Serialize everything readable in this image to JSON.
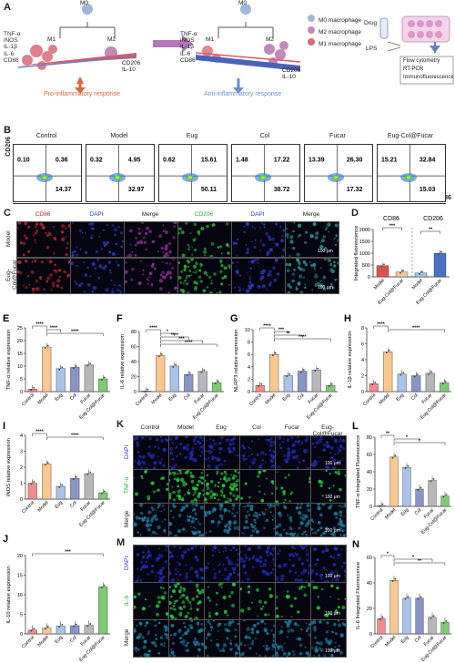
{
  "panel_a": {
    "letter": "A",
    "m0": "M0",
    "m1": "M1",
    "m2": "M2",
    "left_markers_m1": [
      "TNF-α",
      "iNOS",
      "IL-1β",
      "IL-6",
      "CD86"
    ],
    "left_markers_m2": [
      "CD206",
      "IL-10"
    ],
    "right_markers_m1": [
      "TNF-α",
      "iNOS",
      "IL-1β",
      "IL-6",
      "CD86"
    ],
    "right_markers_m2": [
      "CD206",
      "IL-10"
    ],
    "pro": "Pro-inflammatory response",
    "anti": "Anti-inflammatory response",
    "legend": [
      "M0 macrophage",
      "M2 macrophage",
      "M1 macrophage"
    ],
    "drug": "Drug",
    "lps": "LPS",
    "methods": [
      "Flow cytometry",
      "RT-PCR",
      "Immunofluorescence"
    ],
    "colors": {
      "m0": "#9fb7d8",
      "m1": "#d86a7a",
      "m2": "#c28ab8",
      "pro": "#e0643f",
      "anti": "#6b8fc9"
    }
  },
  "panel_b": {
    "letter": "B",
    "yaxis": "CD206",
    "xaxis": "CD86",
    "plots": [
      {
        "title": "Control",
        "q1": "0.10",
        "q2": "0.36",
        "q3": "",
        "q4": "14.37"
      },
      {
        "title": "Model",
        "q1": "0.32",
        "q2": "4.95",
        "q3": "",
        "q4": "32.97"
      },
      {
        "title": "Eug",
        "q1": "0.62",
        "q2": "15.61",
        "q3": "",
        "q4": "50.11"
      },
      {
        "title": "Col",
        "q1": "1.48",
        "q2": "17.22",
        "q3": "",
        "q4": "38.72"
      },
      {
        "title": "Fucar",
        "q1": "13.39",
        "q2": "26.30",
        "q3": "",
        "q4": "17.32"
      },
      {
        "title": "Eug-Col@Fucar",
        "q1": "15.21",
        "q2": "32.84",
        "q3": "",
        "q4": "15.03"
      }
    ]
  },
  "panel_c": {
    "letter": "C",
    "cols": [
      "CD86",
      "DAPI",
      "Merge",
      "CD206",
      "DAPI",
      "Merge"
    ],
    "rows": [
      "Model",
      "Eug-Col@Fucar"
    ],
    "scale": "100 μm",
    "colors": [
      "#b3242a",
      "#2a36b3",
      "#8a2a8a",
      "#2ea836",
      "#2a36b3",
      "#2a8a8a"
    ]
  },
  "panel_d": {
    "letter": "D",
    "chart_data": {
      "type": "bar",
      "group_titles": [
        "CD86",
        "CD206"
      ],
      "categories": [
        "Model",
        "Eug-Col@Fucar",
        "Model",
        "Eug-Col@Fucar"
      ],
      "values": [
        470,
        200,
        160,
        1000
      ],
      "ylabel": "Integrated fluorescence",
      "yticks": [
        "0",
        "500",
        "1000",
        "1500",
        "2000"
      ],
      "ylim": [
        0,
        2000
      ],
      "sig": [
        "***",
        "**"
      ],
      "colors": [
        "#d9534f",
        "#f0c89a",
        "#9cc6e4",
        "#4a72c4"
      ]
    }
  },
  "bar_categories": [
    "Control",
    "Model",
    "Eug",
    "Col",
    "Fucar",
    "Eug-Col@Fucar"
  ],
  "bar_colors": [
    "#f28c8c",
    "#f9c88e",
    "#a9c3ea",
    "#8a94c6",
    "#b7b7b7",
    "#7ecb73"
  ],
  "panel_e": {
    "letter": "E",
    "chart_data": {
      "type": "bar",
      "ylabel": "TNF-α relative expression",
      "values": [
        1,
        17.5,
        9,
        9.5,
        10.5,
        5
      ],
      "yticks": [
        "0",
        "5",
        "10",
        "15",
        "20",
        "25"
      ],
      "ylim": [
        0,
        25
      ],
      "sig": [
        "****",
        "****",
        "****"
      ]
    }
  },
  "panel_f": {
    "letter": "F",
    "chart_data": {
      "type": "bar",
      "ylabel": "IL-6 relative expression",
      "values": [
        1,
        48,
        34,
        23,
        27,
        12
      ],
      "yticks": [
        "0",
        "20",
        "40",
        "60",
        "80"
      ],
      "ylim": [
        0,
        80
      ],
      "sig": [
        "****",
        "*",
        "****",
        "***",
        "****"
      ]
    }
  },
  "panel_g": {
    "letter": "G",
    "chart_data": {
      "type": "bar",
      "ylabel": "NLRP3 relative expression",
      "values": [
        1,
        6,
        2.6,
        3.3,
        3.5,
        1.0
      ],
      "yticks": [
        "0",
        "2",
        "4",
        "6",
        "8",
        "10"
      ],
      "ylim": [
        0,
        10
      ],
      "sig": [
        "****",
        "***",
        "**",
        "****"
      ]
    }
  },
  "panel_h": {
    "letter": "H",
    "chart_data": {
      "type": "bar",
      "ylabel": "IL-1β relative expression",
      "values": [
        1,
        5,
        2.2,
        2,
        2.3,
        1.1
      ],
      "yticks": [
        "0",
        "2",
        "4",
        "6",
        "8"
      ],
      "ylim": [
        0,
        8
      ],
      "sig": [
        "****",
        "****"
      ]
    }
  },
  "panel_i": {
    "letter": "I",
    "chart_data": {
      "type": "bar",
      "ylabel": "iNOS relative expression",
      "values": [
        1,
        2.2,
        0.8,
        1.3,
        1.6,
        0.4
      ],
      "yticks": [
        "0",
        "1",
        "2",
        "3",
        "4"
      ],
      "ylim": [
        0,
        4
      ],
      "sig": [
        "****",
        "****"
      ]
    }
  },
  "panel_j": {
    "letter": "J",
    "chart_data": {
      "type": "bar",
      "ylabel": "IL-10 relative expression",
      "values": [
        1,
        1.5,
        2.0,
        2.1,
        2.2,
        12
      ],
      "yticks": [
        "0",
        "5",
        "10",
        "15",
        "20"
      ],
      "ylim": [
        0,
        20
      ],
      "sig": [
        "***"
      ]
    }
  },
  "panel_k": {
    "letter": "K",
    "cols": [
      "Control",
      "Model",
      "Eug",
      "Col",
      "Fucar",
      "Eug-Col@Fucar"
    ],
    "rows": [
      "DAPI",
      "TNF-α",
      "Merge"
    ],
    "scale": "100 μm",
    "colors": [
      "#1f2ab0",
      "#27c03a",
      "#1c7a9a"
    ]
  },
  "panel_l": {
    "letter": "L",
    "chart_data": {
      "type": "bar",
      "ylabel": "TNF-α Integrated Fluorescence",
      "values": [
        1,
        57,
        45,
        20,
        30,
        12
      ],
      "yticks": [
        "0",
        "20",
        "40",
        "60",
        "80"
      ],
      "ylim": [
        0,
        80
      ],
      "sig": [
        "**",
        "*",
        "*"
      ]
    }
  },
  "panel_m": {
    "letter": "M",
    "rows": [
      "DAPI",
      "IL-6",
      "Merge"
    ],
    "scale": "100 μm",
    "colors": [
      "#1f2ab0",
      "#27c03a",
      "#1c7a9a"
    ]
  },
  "panel_n": {
    "letter": "N",
    "chart_data": {
      "type": "bar",
      "ylabel": "IL-6 Integrated Fluorescence",
      "values": [
        12,
        42,
        28,
        28,
        13,
        9
      ],
      "yticks": [
        "0",
        "20",
        "40",
        "60"
      ],
      "ylim": [
        0,
        60
      ],
      "sig": [
        "*",
        "*",
        "**"
      ]
    }
  }
}
